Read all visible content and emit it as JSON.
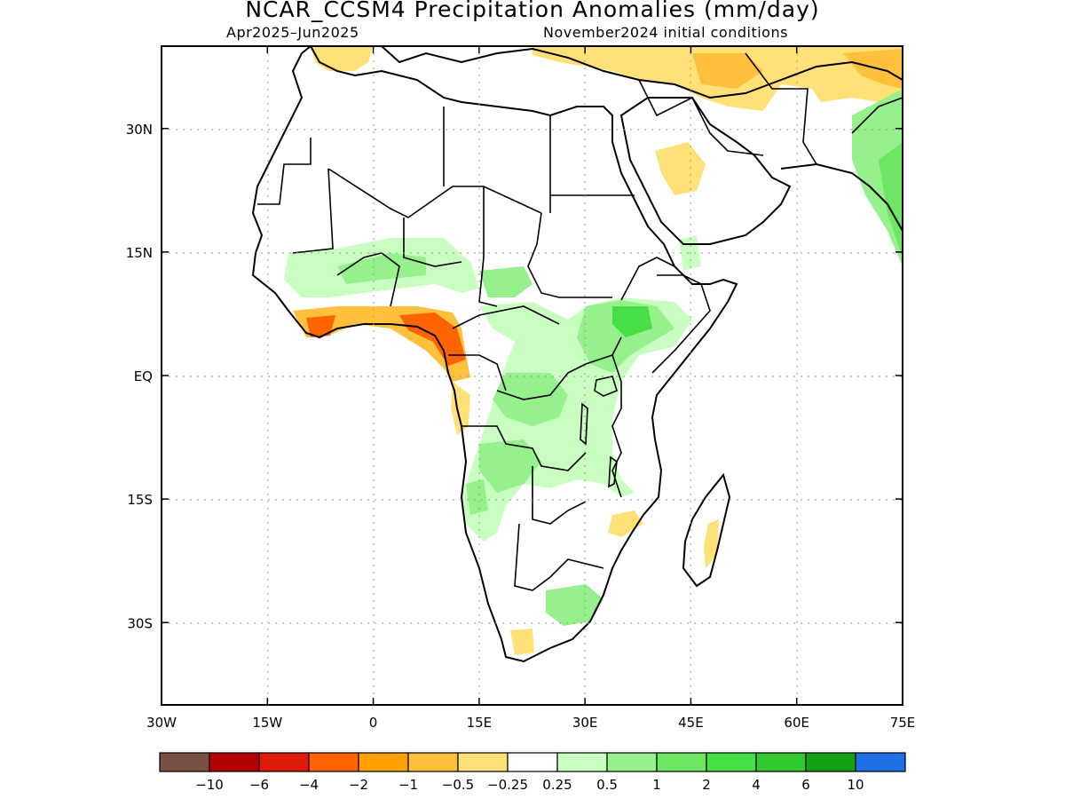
{
  "title": "NCAR_CCSM4 Precipitation Anomalies (mm/day)",
  "period": "Apr2025–Jun2025",
  "init": "November2024 initial conditions",
  "map": {
    "lon_range": [
      -30,
      75
    ],
    "lat_range": [
      -40,
      40
    ],
    "lon_ticks": [
      {
        "lon": -30,
        "label": "30W"
      },
      {
        "lon": -15,
        "label": "15W"
      },
      {
        "lon": 0,
        "label": "0"
      },
      {
        "lon": 15,
        "label": "15E"
      },
      {
        "lon": 30,
        "label": "30E"
      },
      {
        "lon": 45,
        "label": "45E"
      },
      {
        "lon": 60,
        "label": "60E"
      },
      {
        "lon": 75,
        "label": "75E"
      }
    ],
    "lat_ticks": [
      {
        "lat": 30,
        "label": "30N"
      },
      {
        "lat": 15,
        "label": "15N"
      },
      {
        "lat": 0,
        "label": "EQ"
      },
      {
        "lat": -15,
        "label": "15S"
      },
      {
        "lat": -30,
        "label": "30S"
      }
    ],
    "grid": "dotted"
  },
  "legend": {
    "colors": [
      "#7a5045",
      "#b40000",
      "#e01a0a",
      "#ff6400",
      "#ffa000",
      "#ffc03c",
      "#ffe178",
      "#ffffff",
      "#c8ffc0",
      "#96f08c",
      "#6ee664",
      "#46e046",
      "#32c832",
      "#14a014",
      "#1e6ee6"
    ],
    "labels": [
      "−10",
      "−6",
      "−4",
      "−2",
      "−1",
      "−0.5",
      "−0.25",
      "0.25",
      "0.5",
      "1",
      "2",
      "4",
      "6",
      "10"
    ]
  },
  "colors": {
    "wet_light": "#c8ffc0",
    "wet_mid": "#96f08c",
    "wet_strong": "#6ee664",
    "wet_heavy": "#46e046",
    "dry_light": "#ffe178",
    "dry_mid": "#ffc03c",
    "dry_strong": "#ffa000",
    "dry_heavy": "#ff6400"
  }
}
